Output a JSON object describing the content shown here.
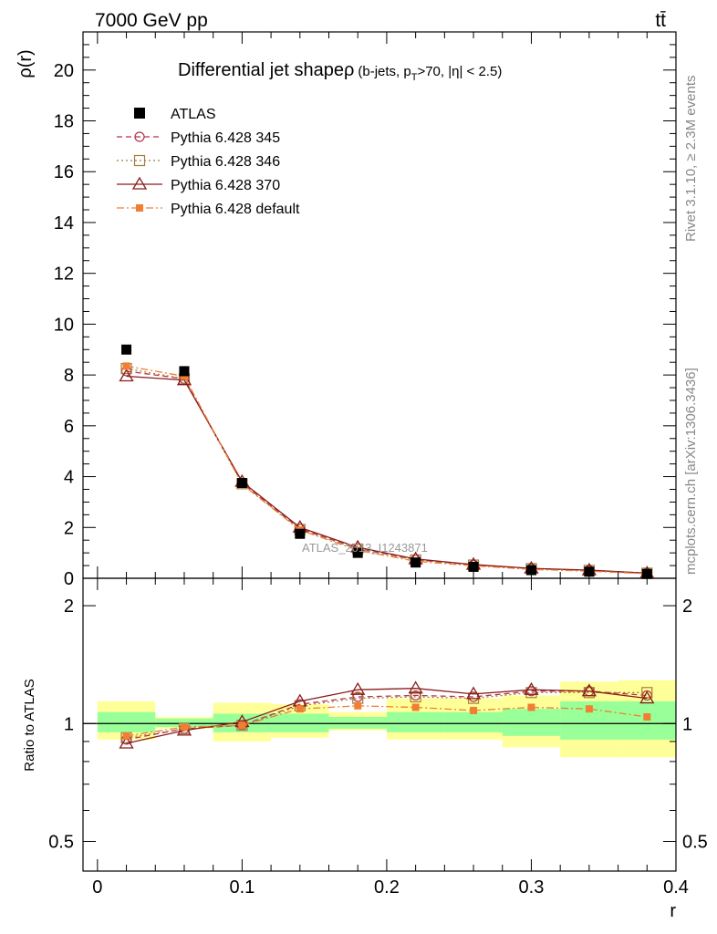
{
  "header": {
    "energy_label": "7000 GeV pp",
    "process_label": "tt̄"
  },
  "side_labels": {
    "rivet": "Rivet 3.1.10, ≥ 2.3M events",
    "mcplots": "mcplots.cern.ch [arXiv:1306.3436]"
  },
  "chart_data": [
    {
      "type": "line",
      "title": "Differential jet shape",
      "title_symbol": "ρ",
      "title_cuts": "(b-jets, p",
      "title_sub": "T",
      "title_cuts2": ">70, |η| < 2.5)",
      "ylabel": "ρ(r)",
      "xlabel": "r",
      "xlim": [
        -0.01,
        0.4
      ],
      "ylim": [
        0,
        21.5
      ],
      "yticks": [
        0,
        2,
        4,
        6,
        8,
        10,
        12,
        14,
        16,
        18,
        20
      ],
      "watermark": "ATLAS_2013_I1243871",
      "x": [
        0.02,
        0.06,
        0.1,
        0.14,
        0.18,
        0.22,
        0.26,
        0.3,
        0.34,
        0.38
      ],
      "data": {
        "name": "ATLAS",
        "color": "#000000",
        "values": [
          9.0,
          8.15,
          3.75,
          1.75,
          1.0,
          0.62,
          0.45,
          0.32,
          0.26,
          0.17
        ]
      },
      "series": [
        {
          "name": "Pythia 6.428 345",
          "color": "#b2334d",
          "marker": "circle",
          "dash": "6,4",
          "values": [
            8.15,
            7.85,
            3.75,
            1.95,
            1.17,
            0.73,
            0.53,
            0.38,
            0.31,
            0.2
          ]
        },
        {
          "name": "Pythia 6.428 346",
          "color": "#a07e3d",
          "marker": "square-open",
          "dash": "2,3",
          "values": [
            8.25,
            7.85,
            3.72,
            1.92,
            1.15,
            0.72,
            0.52,
            0.38,
            0.31,
            0.2
          ]
        },
        {
          "name": "Pythia 6.428 370",
          "color": "#8b1c1c",
          "marker": "triangle",
          "dash": "",
          "values": [
            7.95,
            7.8,
            3.8,
            2.0,
            1.22,
            0.76,
            0.54,
            0.39,
            0.32,
            0.2
          ]
        },
        {
          "name": "Pythia 6.428 default",
          "color": "#f07f33",
          "marker": "square-filled",
          "dash": "8,3,2,3",
          "values": [
            8.35,
            7.95,
            3.7,
            1.9,
            1.1,
            0.67,
            0.49,
            0.35,
            0.28,
            0.18
          ]
        }
      ]
    },
    {
      "type": "line",
      "ylabel": "Ratio to ATLAS",
      "xlabel": "r",
      "xlim": [
        -0.01,
        0.4
      ],
      "ylim": [
        0.42,
        2.35
      ],
      "yscale": "log",
      "yticks": [
        0.5,
        1,
        2
      ],
      "xticks": [
        0,
        0.1,
        0.2,
        0.3,
        0.4
      ],
      "xticklabels": [
        "0",
        "0.1",
        "0.2",
        "0.3",
        "0.4"
      ],
      "x": [
        0.02,
        0.06,
        0.1,
        0.14,
        0.18,
        0.22,
        0.26,
        0.3,
        0.34,
        0.38
      ],
      "bin_edges": [
        0.0,
        0.04,
        0.08,
        0.12,
        0.16,
        0.2,
        0.24,
        0.28,
        0.32,
        0.36,
        0.4
      ],
      "band_inner": {
        "color": "#99ff99",
        "lower": [
          0.95,
          0.98,
          0.95,
          0.95,
          0.97,
          0.95,
          0.95,
          0.93,
          0.91,
          0.91
        ],
        "upper": [
          1.07,
          1.03,
          1.06,
          1.06,
          1.04,
          1.07,
          1.07,
          1.09,
          1.14,
          1.14
        ]
      },
      "band_outer": {
        "color": "#ffff99",
        "lower": [
          0.91,
          0.97,
          0.9,
          0.92,
          0.96,
          0.91,
          0.91,
          0.87,
          0.82,
          0.82
        ],
        "upper": [
          1.14,
          1.04,
          1.13,
          1.12,
          1.07,
          1.16,
          1.16,
          1.18,
          1.28,
          1.29
        ]
      },
      "series": [
        {
          "name": "Pythia 6.428 345",
          "values": [
            0.91,
            0.97,
            0.99,
            1.12,
            1.17,
            1.18,
            1.17,
            1.21,
            1.21,
            1.18
          ]
        },
        {
          "name": "Pythia 6.428 346",
          "values": [
            0.92,
            0.97,
            0.99,
            1.11,
            1.16,
            1.17,
            1.16,
            1.2,
            1.2,
            1.2
          ]
        },
        {
          "name": "Pythia 6.428 370",
          "values": [
            0.89,
            0.96,
            1.01,
            1.14,
            1.22,
            1.23,
            1.19,
            1.22,
            1.21,
            1.16
          ]
        },
        {
          "name": "Pythia 6.428 default",
          "values": [
            0.93,
            0.98,
            0.99,
            1.09,
            1.11,
            1.1,
            1.08,
            1.1,
            1.09,
            1.04
          ]
        }
      ]
    }
  ]
}
